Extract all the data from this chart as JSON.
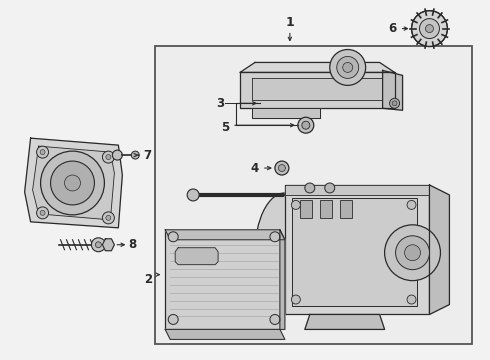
{
  "bg_color": "#f2f2f2",
  "line_color": "#2a2a2a",
  "label_color": "#111111",
  "dpi": 100,
  "figsize": [
    4.9,
    3.6
  ]
}
